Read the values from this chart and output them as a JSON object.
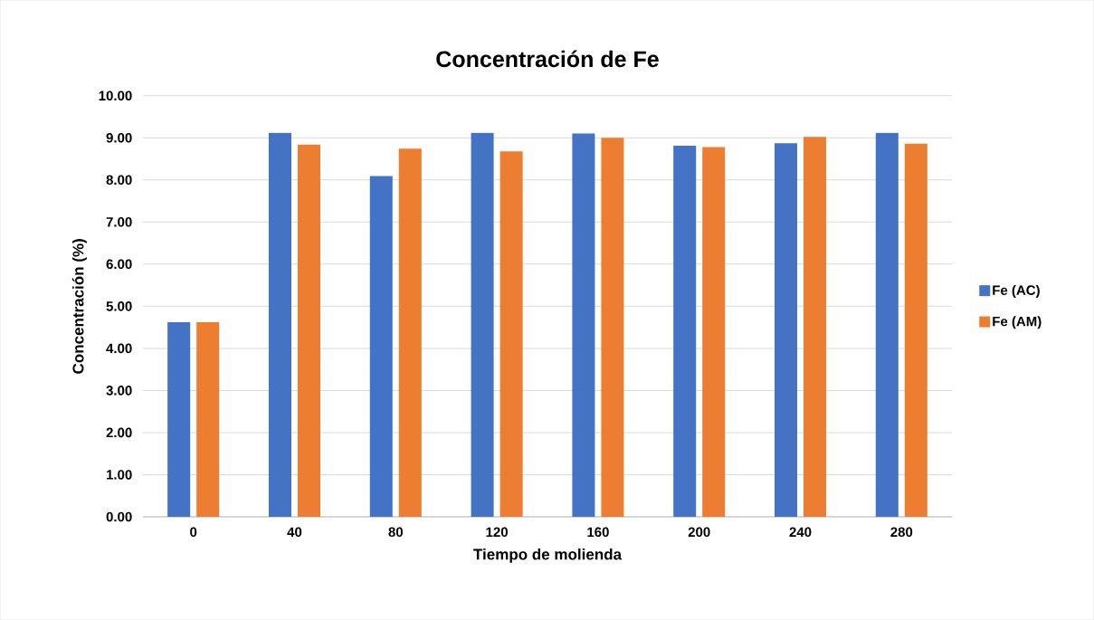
{
  "chart_data": {
    "type": "bar",
    "title": "Concentración de Fe",
    "xlabel": "Tiempo de molienda",
    "ylabel": "Concentración (%)",
    "categories": [
      "0",
      "40",
      "80",
      "120",
      "160",
      "200",
      "240",
      "280"
    ],
    "series": [
      {
        "name": "Fe (AC)",
        "color": "#4472c4",
        "values": [
          4.62,
          9.12,
          8.09,
          9.12,
          9.1,
          8.81,
          8.87,
          9.12
        ]
      },
      {
        "name": "Fe (AM)",
        "color": "#ed7d31",
        "values": [
          4.62,
          8.84,
          8.74,
          8.68,
          9.0,
          8.78,
          9.02,
          8.86
        ]
      }
    ],
    "ylim": [
      0,
      10
    ],
    "yticks": [
      {
        "value": 0,
        "label": "0.00"
      },
      {
        "value": 1,
        "label": "1.00"
      },
      {
        "value": 2,
        "label": "2.00"
      },
      {
        "value": 3,
        "label": "3.00"
      },
      {
        "value": 4,
        "label": "4.00"
      },
      {
        "value": 5,
        "label": "5.00"
      },
      {
        "value": 6,
        "label": "6.00"
      },
      {
        "value": 7,
        "label": "7.00"
      },
      {
        "value": 8,
        "label": "8.00"
      },
      {
        "value": 9,
        "label": "9.00"
      },
      {
        "value": 10,
        "label": "10.00"
      }
    ],
    "grid": "y",
    "legend": "right"
  }
}
